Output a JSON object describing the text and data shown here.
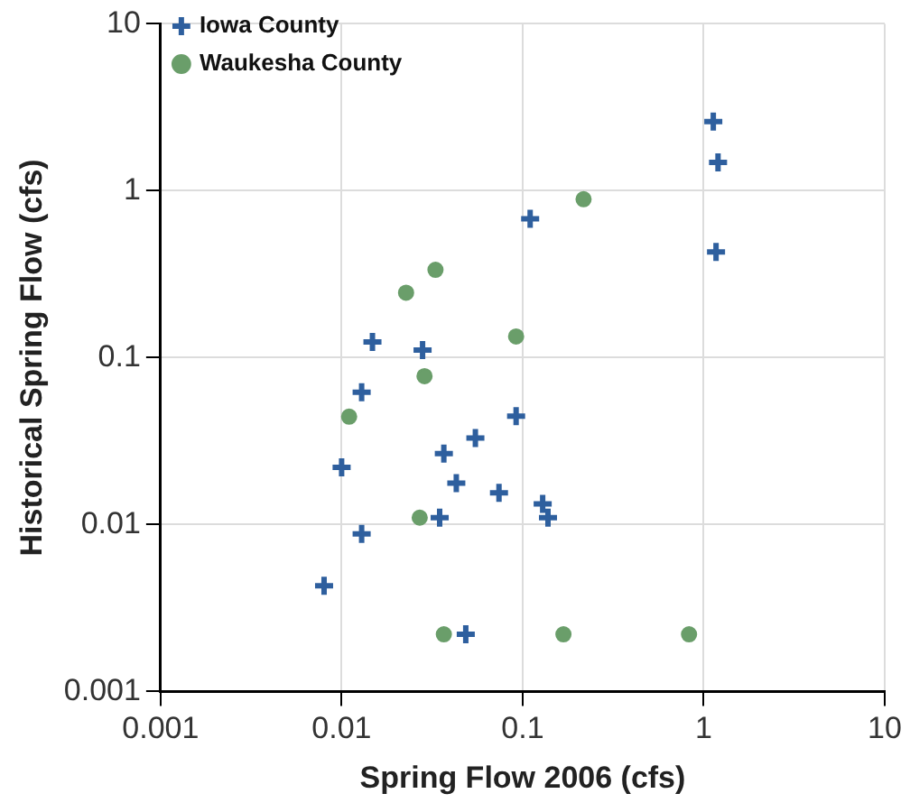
{
  "chart_data": {
    "type": "scatter",
    "xlabel": "Spring Flow 2006 (cfs)",
    "ylabel": "Historical Spring Flow (cfs)",
    "log": "xy",
    "grid": true,
    "legend": "top left",
    "xlim": [
      0.001,
      10
    ],
    "ylim": [
      0.001,
      10
    ],
    "xticks": [
      0.001,
      0.01,
      0.1,
      1,
      10
    ],
    "yticks": [
      0.001,
      0.01,
      0.1,
      1,
      10
    ],
    "series": [
      {
        "name": "Iowa County",
        "color": "#2e5f9e",
        "marker": "cross",
        "x": [
          1.13,
          1.2,
          1.17,
          0.11,
          0.0148,
          0.028,
          0.0129,
          0.01,
          0.092,
          0.0548,
          0.0367,
          0.043,
          0.074,
          0.129,
          0.138,
          0.0348,
          0.0129,
          0.008,
          0.0485
        ],
        "values": [
          2.6,
          1.48,
          0.43,
          0.68,
          0.124,
          0.111,
          0.062,
          0.022,
          0.0446,
          0.033,
          0.0266,
          0.0177,
          0.0155,
          0.0133,
          0.011,
          0.011,
          0.0088,
          0.0043,
          0.0022
        ]
      },
      {
        "name": "Waukesha County",
        "color": "#6a9e6a",
        "marker": "circle",
        "x": [
          0.217,
          0.033,
          0.0227,
          0.092,
          0.0287,
          0.011,
          0.027,
          0.0367,
          0.168,
          0.83
        ],
        "values": [
          0.89,
          0.336,
          0.245,
          0.134,
          0.0775,
          0.0443,
          0.011,
          0.0022,
          0.0022,
          0.0022
        ]
      }
    ]
  }
}
